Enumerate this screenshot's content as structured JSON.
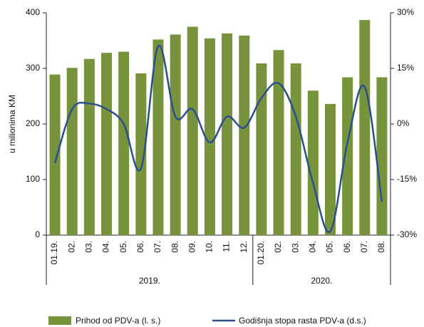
{
  "chart_data": {
    "type": "bar_line",
    "y_label": "u milionima KM",
    "categories": [
      "01.19.",
      "02.",
      "03.",
      "04.",
      "05.",
      "06.",
      "07.",
      "08.",
      "09.",
      "10.",
      "11.",
      "12.",
      "01.20.",
      "02.",
      "03.",
      "04.",
      "05.",
      "06.",
      "07.",
      "08."
    ],
    "groups": [
      {
        "label": "2019.",
        "count": 12
      },
      {
        "label": "2020.",
        "count": 8
      }
    ],
    "series": [
      {
        "name": "Prihod od PDV-a (l. s.)",
        "color": "#77933c",
        "axis": "y",
        "values": [
          289,
          301,
          317,
          328,
          330,
          291,
          352,
          361,
          375,
          354,
          363,
          359,
          309,
          333,
          309,
          260,
          236,
          284,
          387,
          284
        ]
      },
      {
        "name": "Godišnja stopa rasta PDV-a (d.s.)",
        "color": "#2b4f8c",
        "axis": "y2",
        "values": [
          -10.5,
          4,
          5.5,
          4,
          0,
          -12,
          21,
          2,
          4,
          -5,
          2,
          -1,
          7,
          11,
          2,
          -16,
          -29,
          -5,
          10,
          -21
        ]
      }
    ],
    "ylim": [
      0,
      400
    ],
    "yticks": [
      0,
      100,
      200,
      300,
      400
    ],
    "y2lim": [
      -30,
      30
    ],
    "y2ticks": [
      {
        "value": -30,
        "label": "-30%"
      },
      {
        "value": -15,
        "label": "-15%"
      },
      {
        "value": 0,
        "label": "0%"
      },
      {
        "value": 15,
        "label": "15%"
      },
      {
        "value": 30,
        "label": "30%"
      }
    ]
  }
}
